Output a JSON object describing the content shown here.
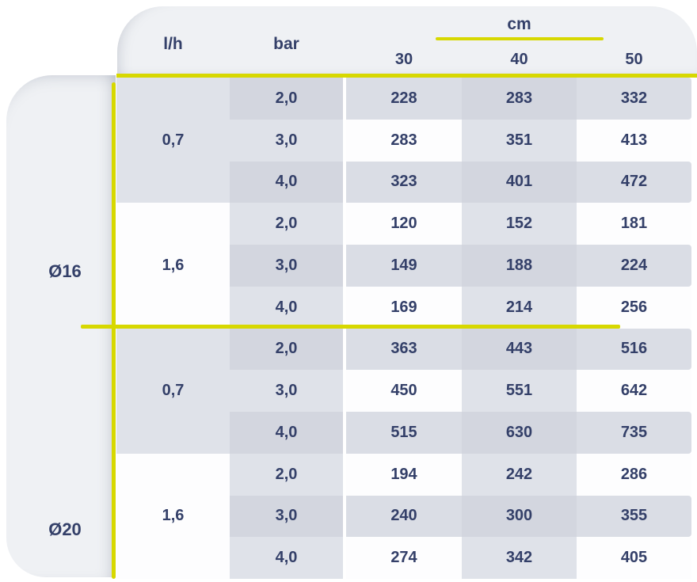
{
  "colors": {
    "accent_yellow": "#d7d800",
    "text_navy": "#344069",
    "card_gray": "#eff1f4",
    "stripe_gray": "#dadde5",
    "column_tint": "#dfe2e9",
    "double_tint": "#d3d6df"
  },
  "chart_data": {
    "type": "table",
    "layout": "matrix of values by pipe diameter, emitter flow (l/h), pressure (bar) and spacing (cm)",
    "headers": {
      "flow": "l/h",
      "pressure": "bar",
      "unit": "cm",
      "spacings": [
        "30",
        "40",
        "50"
      ]
    },
    "sections": [
      {
        "diameter": "Ø16",
        "groups": [
          {
            "flow": "0,7",
            "rows": [
              {
                "bar": "2,0",
                "values": [
                  "228",
                  "283",
                  "332"
                ]
              },
              {
                "bar": "3,0",
                "values": [
                  "283",
                  "351",
                  "413"
                ]
              },
              {
                "bar": "4,0",
                "values": [
                  "323",
                  "401",
                  "472"
                ]
              }
            ]
          },
          {
            "flow": "1,6",
            "rows": [
              {
                "bar": "2,0",
                "values": [
                  "120",
                  "152",
                  "181"
                ]
              },
              {
                "bar": "3,0",
                "values": [
                  "149",
                  "188",
                  "224"
                ]
              },
              {
                "bar": "4,0",
                "values": [
                  "169",
                  "214",
                  "256"
                ]
              }
            ]
          }
        ]
      },
      {
        "diameter": "Ø20",
        "groups": [
          {
            "flow": "0,7",
            "rows": [
              {
                "bar": "2,0",
                "values": [
                  "363",
                  "443",
                  "516"
                ]
              },
              {
                "bar": "3,0",
                "values": [
                  "450",
                  "551",
                  "642"
                ]
              },
              {
                "bar": "4,0",
                "values": [
                  "515",
                  "630",
                  "735"
                ]
              }
            ]
          },
          {
            "flow": "1,6",
            "rows": [
              {
                "bar": "2,0",
                "values": [
                  "194",
                  "242",
                  "286"
                ]
              },
              {
                "bar": "3,0",
                "values": [
                  "240",
                  "300",
                  "355"
                ]
              },
              {
                "bar": "4,0",
                "values": [
                  "274",
                  "342",
                  "405"
                ]
              }
            ]
          }
        ]
      }
    ]
  }
}
